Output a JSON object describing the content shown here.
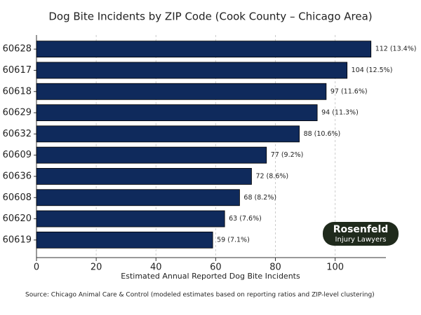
{
  "chart_data": {
    "type": "barh",
    "title": "Dog Bite Incidents by ZIP Code (Cook County – Chicago Area)",
    "xlabel": "Estimated Annual Reported Dog Bite Incidents",
    "source": "Source: Chicago Animal Care & Control (modeled estimates based on reporting ratios and ZIP-level clustering)",
    "categories": [
      "60628",
      "60617",
      "60618",
      "60629",
      "60632",
      "60609",
      "60636",
      "60608",
      "60620",
      "60619"
    ],
    "values": [
      112,
      104,
      97,
      94,
      88,
      77,
      72,
      68,
      63,
      59
    ],
    "value_labels": [
      "112 (13.4%)",
      "104 (12.5%)",
      "97 (11.6%)",
      "94 (11.3%)",
      "88 (10.6%)",
      "77 (9.2%)",
      "72 (8.6%)",
      "68 (8.2%)",
      "63 (7.6%)",
      "59 (7.1%)"
    ],
    "color": "#0f2a5c",
    "xlim": [
      0,
      117
    ],
    "xticks": [
      0,
      20,
      40,
      60,
      80,
      100
    ],
    "grid": true,
    "logo": {
      "name": "Rosenfeld",
      "tagline": "Injury Lawyers"
    }
  }
}
